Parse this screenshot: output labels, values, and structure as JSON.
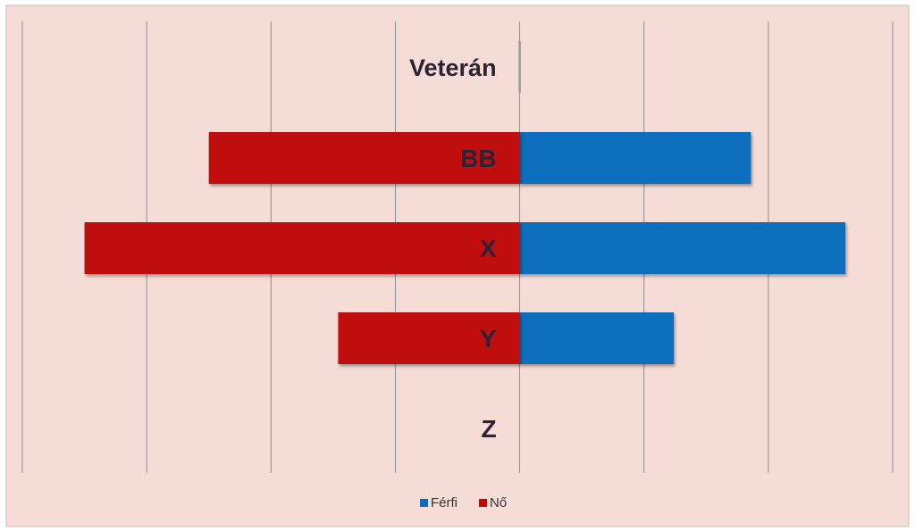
{
  "chart_data": {
    "type": "bar",
    "orientation": "horizontal",
    "layout": "population-pyramid",
    "categories": [
      "Veterán",
      "BB",
      "X",
      "Y",
      "Z"
    ],
    "series": [
      {
        "name": "Férfi",
        "color": "#0a6ebd",
        "values": [
          0,
          0.93,
          1.31,
          0.62,
          0
        ]
      },
      {
        "name": "Nő",
        "color": "#c00a0a",
        "values": [
          0,
          -1.25,
          -1.75,
          -0.73,
          0
        ]
      }
    ],
    "xlim": [
      -2.0,
      1.5
    ],
    "grid": true,
    "legend_position": "bottom",
    "background_color": "#f6dcd7",
    "gridline_color": "#8c8c8c",
    "label_color": "#2b2233"
  }
}
